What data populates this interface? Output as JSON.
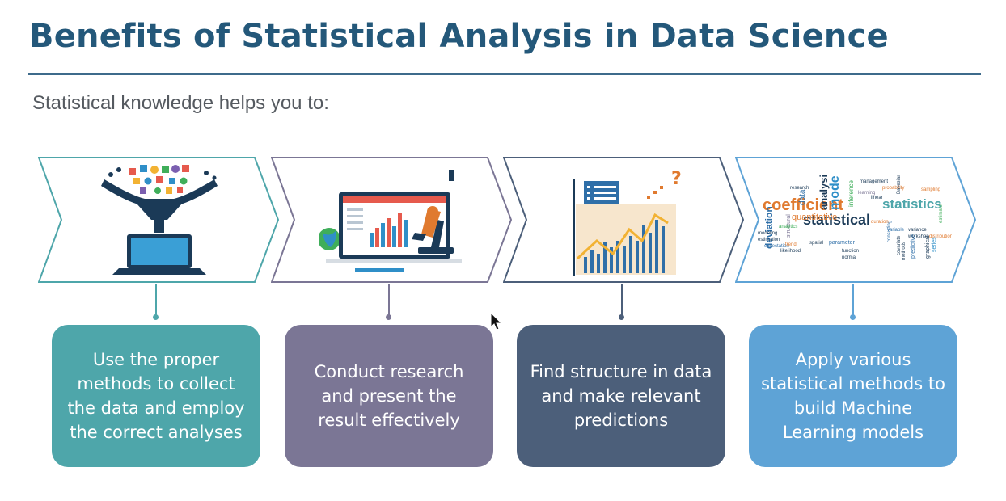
{
  "title": "Benefits of Statistical Analysis in Data Science",
  "subtitle": "Statistical knowledge helps you to:",
  "colors": {
    "title": "#24587a",
    "rule": "#3e6b8b",
    "step1": "#4ea6aa",
    "step2": "#7b7695",
    "step3": "#4c5f7a",
    "step4": "#5ea3d6"
  },
  "steps": [
    {
      "text": "Use the proper methods to collect the data and employ the correct analyses",
      "icon": "funnel-laptop-icon"
    },
    {
      "text": "Conduct research and present the result effectively",
      "icon": "monitor-microscope-icon"
    },
    {
      "text": "Find structure in data and make relevant predictions",
      "icon": "bar-chart-question-icon"
    },
    {
      "text": "Apply various statistical methods to build Machine Learning models",
      "icon": "statistics-word-cloud-icon"
    }
  ],
  "word_cloud": [
    "research",
    "coefficient",
    "data",
    "analysis",
    "models",
    "inference",
    "statistics",
    "statistical",
    "quantitative",
    "deviation",
    "probability",
    "modeling",
    "estimation",
    "expectation",
    "likelihood",
    "trend",
    "parameter",
    "spatial",
    "methods",
    "predictive",
    "variance",
    "workshop",
    "distribution",
    "consulting",
    "function",
    "normal",
    "covariate",
    "series",
    "duration",
    "structural",
    "analytics",
    "management",
    "learning",
    "Bayesian",
    "estimator",
    "sampling",
    "linear",
    "graphical",
    "variable"
  ]
}
